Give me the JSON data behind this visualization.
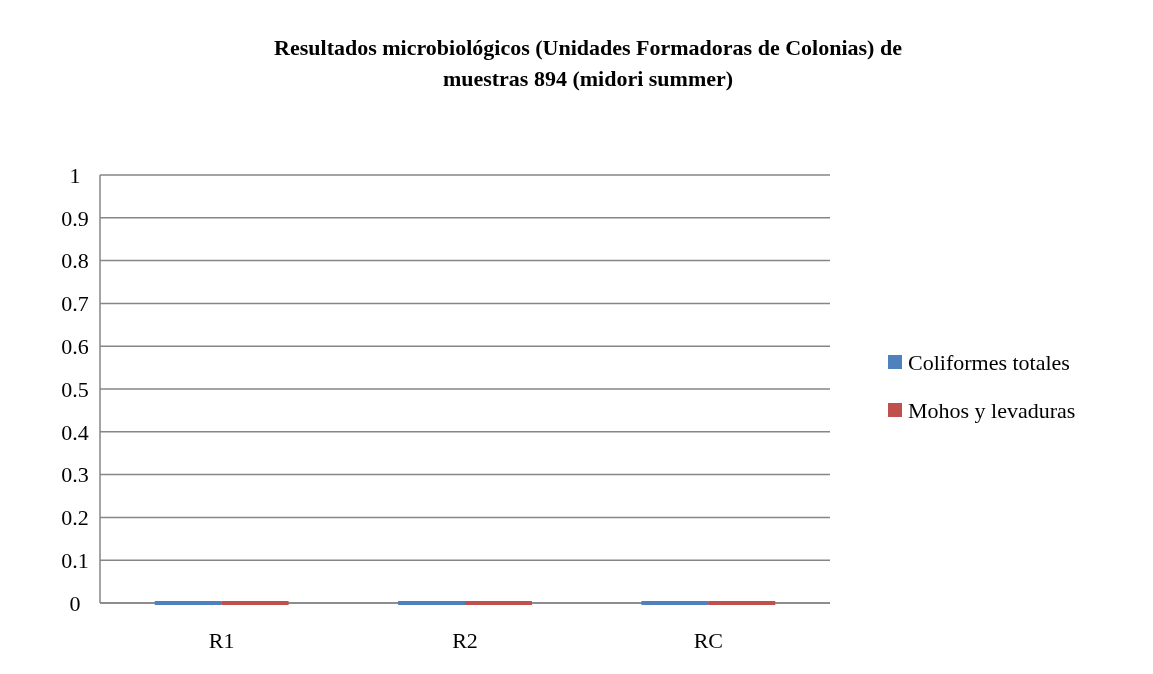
{
  "chart_data": {
    "type": "bar",
    "title": "Resultados microbiológicos (Unidades Formadoras de Colonias) de muestras 894 (midori summer)",
    "categories": [
      "R1",
      "R2",
      "RC"
    ],
    "series": [
      {
        "name": "Coliformes totales",
        "color": "#4f81bd",
        "values": [
          0,
          0,
          0
        ]
      },
      {
        "name": "Mohos y levaduras",
        "color": "#c0504d",
        "values": [
          0,
          0,
          0
        ]
      }
    ],
    "ylim": [
      0,
      1
    ],
    "yticks": [
      0,
      0.1,
      0.2,
      0.3,
      0.4,
      0.5,
      0.6,
      0.7,
      0.8,
      0.9,
      1
    ],
    "grid": "y",
    "legend": "right"
  }
}
